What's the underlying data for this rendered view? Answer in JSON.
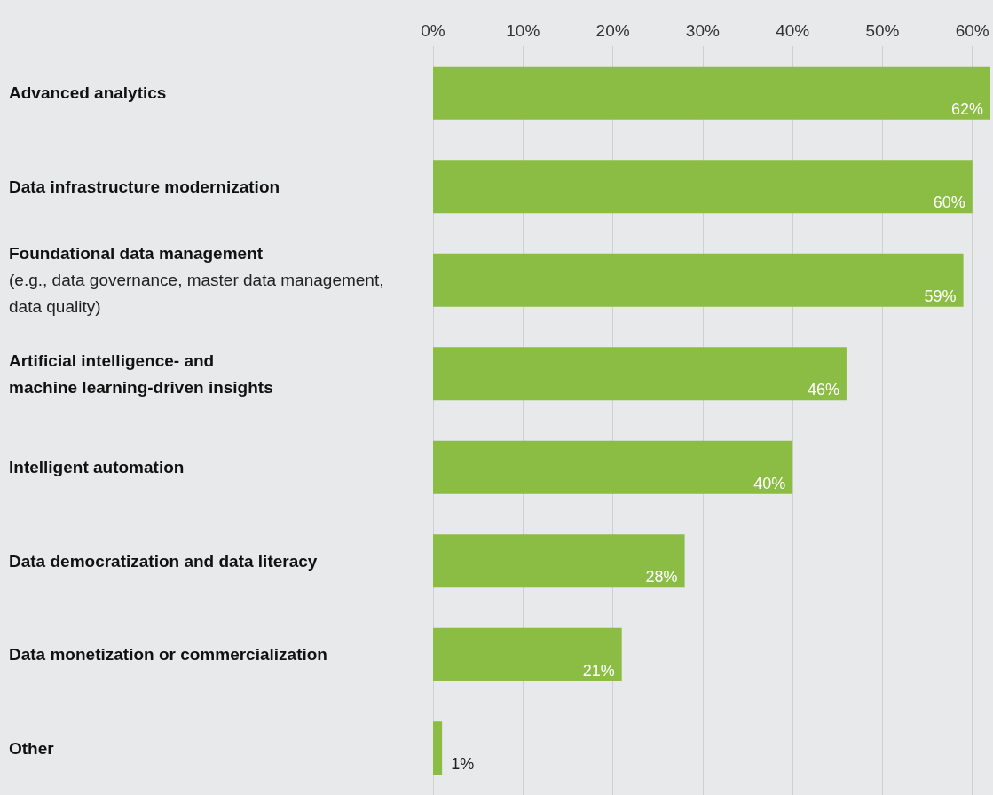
{
  "chart_data": {
    "type": "bar",
    "orientation": "horizontal",
    "categories": [
      "Advanced analytics",
      "Data infrastructure modernization",
      "Foundational data management\n(e.g., data governance, master data management,\ndata quality)",
      "Artificial intelligence- and\nmachine learning-driven insights",
      "Intelligent automation",
      "Data democratization and data literacy",
      "Data monetization or commercialization",
      "Other"
    ],
    "values": [
      62,
      60,
      59,
      46,
      40,
      28,
      21,
      1
    ],
    "value_labels": [
      "62%",
      "60%",
      "59%",
      "46%",
      "40%",
      "28%",
      "21%",
      "1%"
    ],
    "color": "#8bbd45",
    "xlim": [
      0,
      62
    ],
    "xticks": [
      {
        "value": 0,
        "label": "0%"
      },
      {
        "value": 10,
        "label": "10%"
      },
      {
        "value": 20,
        "label": "20%"
      },
      {
        "value": 30,
        "label": "30%"
      },
      {
        "value": 40,
        "label": "40%"
      },
      {
        "value": 50,
        "label": "50%"
      },
      {
        "value": 60,
        "label": "60%"
      }
    ],
    "grid": "x"
  }
}
